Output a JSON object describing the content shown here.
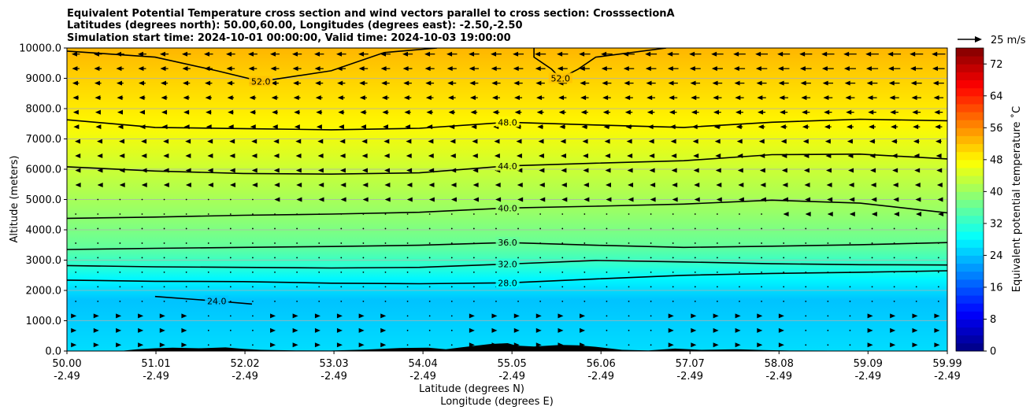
{
  "chart_data": {
    "type": "heatmap",
    "title_lines": [
      "Equivalent Potential Temperature cross section and wind vectors parallel to cross section: CrosssectionA",
      "Latitudes (degrees north): 50.00,60.00, Longitudes (degrees east): -2.50,-2.50",
      "Simulation start time: 2024-10-01 00:00:00, Valid time: 2024-10-03 19:00:00"
    ],
    "xlabel_lines": [
      "Latitude (degrees N)",
      "Longitude (degrees E)"
    ],
    "ylabel": "Altitude (meters)",
    "x_range": [
      50.0,
      59.99
    ],
    "x_ticks": [
      {
        "lat": "50.00",
        "lon": "-2.49",
        "v": 50.0
      },
      {
        "lat": "51.01",
        "lon": "-2.49",
        "v": 51.01
      },
      {
        "lat": "52.02",
        "lon": "-2.49",
        "v": 52.02
      },
      {
        "lat": "53.03",
        "lon": "-2.49",
        "v": 53.03
      },
      {
        "lat": "54.04",
        "lon": "-2.49",
        "v": 54.04
      },
      {
        "lat": "55.05",
        "lon": "-2.49",
        "v": 55.05
      },
      {
        "lat": "56.06",
        "lon": "-2.49",
        "v": 56.06
      },
      {
        "lat": "57.07",
        "lon": "-2.49",
        "v": 57.07
      },
      {
        "lat": "58.08",
        "lon": "-2.49",
        "v": 58.08
      },
      {
        "lat": "59.09",
        "lon": "-2.49",
        "v": 59.09
      },
      {
        "lat": "59.99",
        "lon": "-2.49",
        "v": 59.99
      }
    ],
    "ylim": [
      0,
      10000
    ],
    "y_ticks": [
      {
        "label": "0.0",
        "v": 0
      },
      {
        "label": "1000.0",
        "v": 1000
      },
      {
        "label": "2000.0",
        "v": 2000
      },
      {
        "label": "3000.0",
        "v": 3000
      },
      {
        "label": "4000.0",
        "v": 4000
      },
      {
        "label": "5000.0",
        "v": 5000
      },
      {
        "label": "6000.0",
        "v": 6000
      },
      {
        "label": "7000.0",
        "v": 7000
      },
      {
        "label": "8000.0",
        "v": 8000
      },
      {
        "label": "9000.0",
        "v": 9000
      },
      {
        "label": "10000.0",
        "v": 10000
      }
    ],
    "grid": "horizontal",
    "colorbar": {
      "label": "Equivalent potential temperature $^\\circ$C",
      "label_text": "Equivalent potential temperature ˚C",
      "range": [
        0,
        76
      ],
      "step": 2,
      "ticks": [
        "0",
        "8",
        "16",
        "24",
        "32",
        "40",
        "48",
        "56",
        "64",
        "72"
      ],
      "colormap": "jet"
    },
    "quiver_key": {
      "label": "25 m/s",
      "speed": 25
    },
    "contour_levels": [
      {
        "value": 24.0,
        "label": "24.0",
        "points": [
          [
            51.0,
            1800
          ],
          [
            51.7,
            1650
          ],
          [
            52.1,
            1550
          ]
        ]
      },
      {
        "value": 28.0,
        "label": "28.0",
        "points": [
          [
            50.0,
            2340
          ],
          [
            51.0,
            2300
          ],
          [
            52.0,
            2290
          ],
          [
            53.0,
            2240
          ],
          [
            54.0,
            2220
          ],
          [
            55.0,
            2250
          ],
          [
            56.0,
            2380
          ],
          [
            57.0,
            2500
          ],
          [
            58.0,
            2560
          ],
          [
            59.0,
            2600
          ],
          [
            59.99,
            2650
          ]
        ]
      },
      {
        "value": 32.0,
        "label": "32.0",
        "points": [
          [
            50.0,
            2820
          ],
          [
            51.0,
            2780
          ],
          [
            52.0,
            2760
          ],
          [
            53.0,
            2740
          ],
          [
            54.0,
            2760
          ],
          [
            55.0,
            2870
          ],
          [
            56.0,
            2990
          ],
          [
            57.0,
            2940
          ],
          [
            58.0,
            2880
          ],
          [
            59.0,
            2850
          ],
          [
            59.99,
            2840
          ]
        ]
      },
      {
        "value": 36.0,
        "label": "36.0",
        "points": [
          [
            50.0,
            3350
          ],
          [
            51.0,
            3390
          ],
          [
            52.0,
            3420
          ],
          [
            53.0,
            3450
          ],
          [
            54.0,
            3490
          ],
          [
            55.0,
            3580
          ],
          [
            56.0,
            3490
          ],
          [
            57.0,
            3420
          ],
          [
            58.0,
            3460
          ],
          [
            59.0,
            3510
          ],
          [
            59.99,
            3580
          ]
        ]
      },
      {
        "value": 40.0,
        "label": "40.0",
        "points": [
          [
            50.0,
            4380
          ],
          [
            51.0,
            4420
          ],
          [
            52.0,
            4480
          ],
          [
            53.0,
            4520
          ],
          [
            54.0,
            4580
          ],
          [
            55.0,
            4720
          ],
          [
            56.0,
            4780
          ],
          [
            57.0,
            4850
          ],
          [
            58.0,
            4980
          ],
          [
            59.0,
            4880
          ],
          [
            59.99,
            4560
          ]
        ]
      },
      {
        "value": 44.0,
        "label": "44.0",
        "points": [
          [
            50.0,
            6080
          ],
          [
            51.0,
            5940
          ],
          [
            52.0,
            5860
          ],
          [
            53.0,
            5840
          ],
          [
            54.0,
            5880
          ],
          [
            55.0,
            6110
          ],
          [
            56.0,
            6200
          ],
          [
            57.0,
            6280
          ],
          [
            58.0,
            6480
          ],
          [
            59.0,
            6500
          ],
          [
            59.99,
            6340
          ]
        ]
      },
      {
        "value": 48.0,
        "label": "48.0",
        "points": [
          [
            50.0,
            7630
          ],
          [
            51.0,
            7380
          ],
          [
            52.0,
            7340
          ],
          [
            53.0,
            7300
          ],
          [
            54.0,
            7350
          ],
          [
            55.0,
            7550
          ],
          [
            56.0,
            7460
          ],
          [
            57.0,
            7380
          ],
          [
            58.0,
            7550
          ],
          [
            59.0,
            7650
          ],
          [
            59.99,
            7600
          ]
        ]
      },
      {
        "value": 52.0,
        "label": "52.0",
        "points": [
          [
            50.0,
            9900
          ],
          [
            51.0,
            9700
          ],
          [
            51.7,
            9250
          ],
          [
            52.2,
            8900
          ],
          [
            53.0,
            9250
          ],
          [
            53.6,
            9850
          ],
          [
            54.2,
            10000
          ]
        ]
      },
      {
        "value": 52.0,
        "label": "52.0",
        "points": [
          [
            55.3,
            10000
          ],
          [
            55.3,
            9700
          ],
          [
            55.5,
            9300
          ],
          [
            55.6,
            9000
          ],
          [
            55.8,
            9300
          ],
          [
            56.0,
            9700
          ],
          [
            56.8,
            10000
          ]
        ]
      }
    ],
    "terrain_points": [
      [
        50.0,
        0
      ],
      [
        50.6,
        0
      ],
      [
        50.8,
        60
      ],
      [
        51.0,
        90
      ],
      [
        51.2,
        110
      ],
      [
        51.5,
        90
      ],
      [
        51.8,
        120
      ],
      [
        52.0,
        70
      ],
      [
        52.2,
        40
      ],
      [
        52.6,
        20
      ],
      [
        53.0,
        15
      ],
      [
        53.4,
        50
      ],
      [
        53.8,
        100
      ],
      [
        54.1,
        110
      ],
      [
        54.3,
        60
      ],
      [
        54.5,
        130
      ],
      [
        54.8,
        230
      ],
      [
        55.0,
        260
      ],
      [
        55.1,
        180
      ],
      [
        55.3,
        150
      ],
      [
        55.6,
        200
      ],
      [
        55.8,
        190
      ],
      [
        56.0,
        140
      ],
      [
        56.3,
        40
      ],
      [
        56.6,
        20
      ],
      [
        56.9,
        80
      ],
      [
        57.2,
        40
      ],
      [
        57.6,
        60
      ],
      [
        57.9,
        30
      ],
      [
        58.2,
        15
      ],
      [
        59.0,
        10
      ],
      [
        59.99,
        0
      ]
    ]
  }
}
